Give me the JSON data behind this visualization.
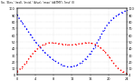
{
  "title": "So. 'Elev.' (red), 'Incid.' (blue), 'max' (dkTMY), 'Inst' (I)",
  "blue_x": [
    0,
    1,
    2,
    3,
    4,
    5,
    6,
    7,
    8,
    9,
    10,
    11,
    12,
    13,
    14,
    15,
    16,
    17,
    18,
    19,
    20,
    21,
    22,
    23,
    24
  ],
  "blue_y": [
    90,
    80,
    70,
    60,
    50,
    42,
    34,
    28,
    22,
    18,
    14,
    12,
    12,
    14,
    18,
    24,
    32,
    42,
    55,
    68,
    78,
    85,
    90,
    94,
    97
  ],
  "red_x": [
    0,
    1,
    2,
    3,
    4,
    5,
    6,
    7,
    8,
    9,
    10,
    11,
    12,
    13,
    14,
    15,
    16,
    17,
    18,
    19,
    20,
    21,
    22,
    23,
    24
  ],
  "red_y": [
    5,
    10,
    18,
    28,
    36,
    42,
    46,
    48,
    48,
    47,
    46,
    45,
    45,
    46,
    47,
    48,
    48,
    46,
    42,
    36,
    28,
    18,
    10,
    5,
    2
  ],
  "xlim": [
    0,
    24
  ],
  "ylim": [
    0,
    100
  ],
  "xticks": [
    0,
    4,
    8,
    12,
    16,
    20,
    24
  ],
  "yticks_left": [
    0,
    10,
    20,
    30,
    40,
    50,
    60,
    70,
    80,
    90,
    100
  ],
  "yticks_right": [
    0,
    10,
    20,
    30,
    40,
    50,
    60,
    70,
    80,
    90,
    100
  ],
  "background_color": "#ffffff",
  "blue_color": "#0000ff",
  "red_color": "#ff0000",
  "grid_color": "#aaaaaa"
}
